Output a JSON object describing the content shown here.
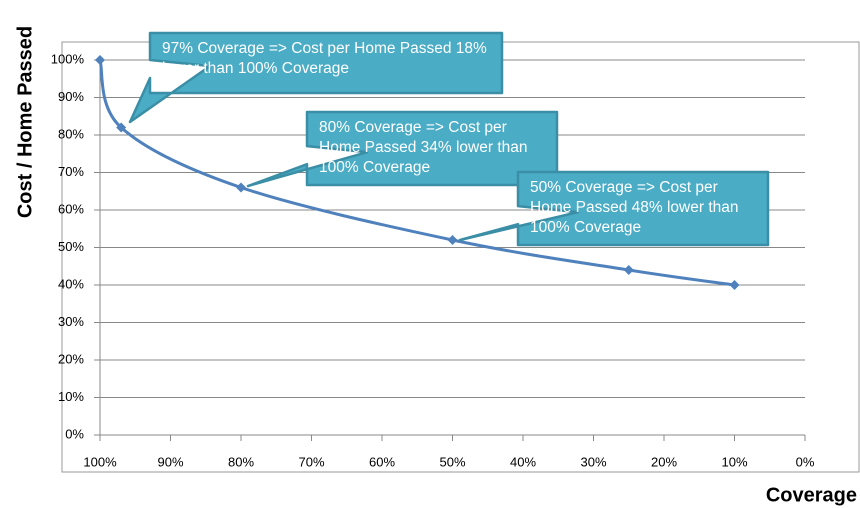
{
  "chart_data": {
    "type": "line",
    "y_label": "Cost / Home Passed",
    "x_label": "Coverage",
    "x": [
      100,
      97,
      80,
      50,
      25,
      10
    ],
    "values": [
      100,
      82,
      66,
      52,
      44,
      40
    ],
    "color": "#4f81bd",
    "xlim": [
      100,
      0
    ],
    "ylim": [
      0,
      100
    ],
    "xticks": [
      {
        "value": 100,
        "label": "100%"
      },
      {
        "value": 90,
        "label": "90%"
      },
      {
        "value": 80,
        "label": "80%"
      },
      {
        "value": 70,
        "label": "70%"
      },
      {
        "value": 60,
        "label": "60%"
      },
      {
        "value": 50,
        "label": "50%"
      },
      {
        "value": 40,
        "label": "40%"
      },
      {
        "value": 30,
        "label": "30%"
      },
      {
        "value": 20,
        "label": "20%"
      },
      {
        "value": 10,
        "label": "10%"
      },
      {
        "value": 0,
        "label": "0%"
      }
    ],
    "yticks": [
      {
        "value": 0,
        "label": "0%"
      },
      {
        "value": 10,
        "label": "10%"
      },
      {
        "value": 20,
        "label": "20%"
      },
      {
        "value": 30,
        "label": "30%"
      },
      {
        "value": 40,
        "label": "40%"
      },
      {
        "value": 50,
        "label": "50%"
      },
      {
        "value": 60,
        "label": "60%"
      },
      {
        "value": 70,
        "label": "70%"
      },
      {
        "value": 80,
        "label": "80%"
      },
      {
        "value": 90,
        "label": "90%"
      },
      {
        "value": 100,
        "label": "100%"
      }
    ],
    "grid": true,
    "annotations": [
      {
        "text": "97% Coverage => Cost per Home Passed 18% lower than 100% Coverage"
      },
      {
        "text": "80% Coverage => Cost per Home Passed 34% lower than 100% Coverage"
      },
      {
        "text": "50% Coverage => Cost per Home Passed 48% lower than 100% Coverage"
      }
    ]
  }
}
